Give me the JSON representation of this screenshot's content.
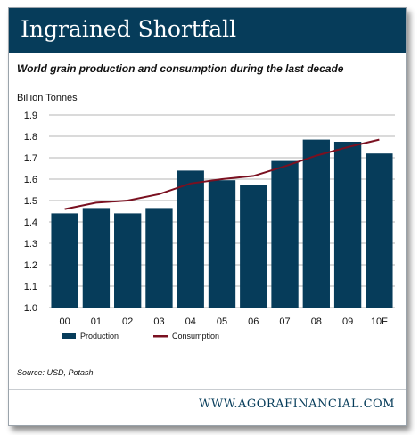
{
  "banner": {
    "title": "Ingrained Shortfall"
  },
  "footer": {
    "source": "Source: USD, Potash",
    "website": "WWW.AGORAFINANCIAL.COM"
  },
  "colors": {
    "banner": "#063c5a",
    "bar": "#063c5a",
    "line": "#7a1020"
  },
  "chart_data": {
    "type": "bar",
    "title": "World grain production and consumption during the last decade",
    "ylabel": "Billion Tonnes",
    "xlabel": "",
    "categories": [
      "00",
      "01",
      "02",
      "03",
      "04",
      "05",
      "06",
      "07",
      "08",
      "09",
      "10F"
    ],
    "ylim": [
      1.0,
      1.9
    ],
    "yticks": [
      "1.0",
      "1.1",
      "1.2",
      "1.3",
      "1.4",
      "1.5",
      "1.6",
      "1.7",
      "1.8",
      "1.9"
    ],
    "grid": true,
    "legend_position": "bottom-left",
    "series": [
      {
        "name": "Production",
        "type": "bar",
        "values": [
          1.44,
          1.465,
          1.44,
          1.465,
          1.64,
          1.595,
          1.575,
          1.685,
          1.785,
          1.775,
          1.72
        ]
      },
      {
        "name": "Consumption",
        "type": "line",
        "values": [
          1.46,
          1.49,
          1.5,
          1.53,
          1.58,
          1.6,
          1.615,
          1.66,
          1.71,
          1.75,
          1.785
        ]
      }
    ]
  }
}
